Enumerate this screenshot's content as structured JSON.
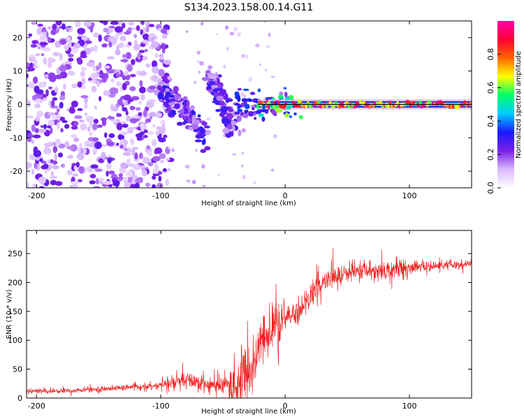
{
  "title": "S134.2023.158.00.14.G11",
  "chart_data": [
    {
      "type": "heatmap",
      "id": "spectrogram",
      "xlabel": "Height of straight line (km)",
      "ylabel": "Frequency (Hz)",
      "xlim": [
        -208,
        150
      ],
      "ylim": [
        -25,
        25
      ],
      "xticks": [
        -200,
        -100,
        0,
        100
      ],
      "yticks": [
        -20,
        -10,
        0,
        10,
        20
      ],
      "colorbar": {
        "label": "Normalized spectral amplitude",
        "range": [
          0,
          1
        ],
        "ticks": [
          "0.0",
          "0.2",
          "0.4",
          "0.6",
          "0.8"
        ],
        "tick_values": [
          0.0,
          0.2,
          0.4,
          0.6,
          0.8
        ],
        "colors": [
          "#ffffff",
          "#d9b8ff",
          "#7a1fe6",
          "#1a1aff",
          "#00ccff",
          "#00ff66",
          "#ffff00",
          "#ff6600",
          "#ff0033",
          "#ff00aa"
        ]
      },
      "features": {
        "noise_region_x": [
          -208,
          -100
        ],
        "descending_streak": [
          [
            -100,
            4
          ],
          [
            -85,
            0
          ],
          [
            -75,
            -4
          ],
          [
            -65,
            -11
          ]
        ],
        "second_streak": [
          [
            -62,
            9
          ],
          [
            -55,
            4
          ],
          [
            -48,
            -2
          ],
          [
            -42,
            -9
          ]
        ],
        "carrier_line_x": [
          -22,
          150
        ],
        "carrier_freq": 0
      }
    },
    {
      "type": "line",
      "id": "snr",
      "xlabel": "Height of straight line (km)",
      "ylabel": "SNR (10 * v/v)",
      "xlim": [
        -208,
        150
      ],
      "ylim": [
        0,
        290
      ],
      "xticks": [
        -200,
        -100,
        0,
        100
      ],
      "yticks": [
        0,
        50,
        100,
        150,
        200,
        250
      ],
      "color": "#ee2222",
      "series": [
        {
          "name": "SNR",
          "x": [
            -208,
            -190,
            -170,
            -150,
            -130,
            -110,
            -100,
            -90,
            -80,
            -70,
            -60,
            -50,
            -40,
            -35,
            -30,
            -25,
            -20,
            -15,
            -10,
            -5,
            0,
            5,
            10,
            15,
            20,
            25,
            30,
            40,
            50,
            60,
            70,
            80,
            90,
            100,
            110,
            120,
            130,
            140,
            150
          ],
          "values": [
            12,
            12,
            13,
            15,
            18,
            20,
            22,
            26,
            30,
            28,
            22,
            22,
            25,
            30,
            40,
            60,
            90,
            110,
            120,
            125,
            135,
            145,
            150,
            160,
            175,
            190,
            200,
            210,
            215,
            220,
            220,
            222,
            225,
            225,
            228,
            228,
            230,
            230,
            232
          ]
        }
      ]
    }
  ]
}
